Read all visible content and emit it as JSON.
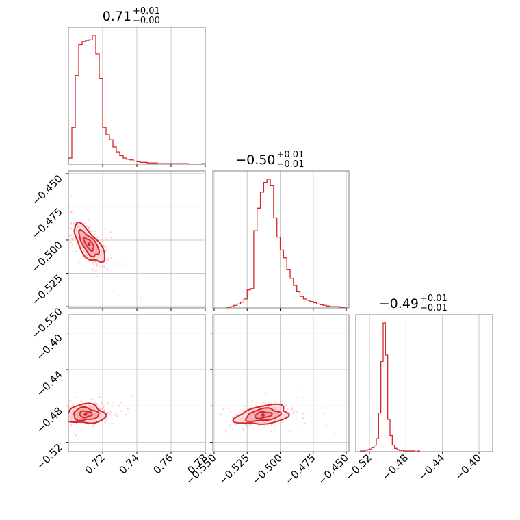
{
  "colors": {
    "hist": "#d62728",
    "contour": "#d62728",
    "fill_light": "#f7c9cc",
    "fill_mid": "#ec9aa0",
    "scatter": "#f4a3a8",
    "grid": "#c8c8c8",
    "frame": "#808080"
  },
  "chart_data": [
    {
      "type": "histogram",
      "panel": "0-0",
      "variable": 0,
      "title": {
        "value": "0.71",
        "plus": "+0.01",
        "minus": "−0.00"
      },
      "xlim": [
        0.7,
        0.78
      ],
      "bins": {
        "start": 0.7,
        "width": 0.002,
        "counts": [
          10,
          60,
          145,
          195,
          200,
          202,
          203,
          210,
          180,
          140,
          60,
          48,
          40,
          28,
          20,
          14,
          10,
          8,
          7,
          5,
          4,
          3,
          3,
          2,
          2,
          2,
          1,
          1,
          1,
          1,
          1,
          1,
          1,
          1,
          1,
          0,
          0,
          0,
          0,
          1
        ]
      }
    },
    {
      "type": "scatter-contour",
      "panel": "1-0",
      "xlim": [
        0.7,
        0.78
      ],
      "ylim": [
        -0.551,
        -0.448
      ],
      "xcenter": 0.712,
      "ycenter": -0.503,
      "contour_levels": 3
    },
    {
      "type": "histogram",
      "panel": "1-1",
      "variable": 1,
      "title": {
        "value": "−0.50",
        "plus": "+0.01",
        "minus": "−0.01"
      },
      "xlim": [
        -0.551,
        -0.448
      ],
      "bins": {
        "start": -0.54,
        "width": 0.0025,
        "counts": [
          1,
          2,
          4,
          6,
          9,
          14,
          28,
          30,
          120,
          155,
          180,
          195,
          200,
          190,
          140,
          110,
          90,
          78,
          60,
          46,
          35,
          25,
          18,
          14,
          12,
          10,
          8,
          6,
          5,
          4,
          3,
          2,
          2,
          2,
          1,
          1
        ]
      }
    },
    {
      "type": "scatter-contour",
      "panel": "2-0",
      "xlim": [
        0.7,
        0.78
      ],
      "ylim": [
        -0.53,
        -0.38
      ],
      "xcenter": 0.71,
      "ycenter": -0.489,
      "contour_levels": 3
    },
    {
      "type": "scatter-contour",
      "panel": "2-1",
      "xlim": [
        -0.551,
        -0.448
      ],
      "ylim": [
        -0.53,
        -0.38
      ],
      "xcenter": -0.513,
      "ycenter": -0.49,
      "contour_levels": 3
    },
    {
      "type": "histogram",
      "panel": "2-2",
      "variable": 2,
      "title": {
        "value": "−0.49",
        "plus": "+0.01",
        "minus": "−0.01"
      },
      "xlim": [
        -0.535,
        -0.385
      ],
      "bins": {
        "start": -0.53,
        "width": 0.0025,
        "counts": [
          1,
          1,
          2,
          3,
          4,
          6,
          10,
          20,
          60,
          140,
          200,
          150,
          50,
          25,
          10,
          5,
          3,
          2,
          2,
          1,
          1,
          1,
          1,
          1,
          0,
          1
        ]
      }
    }
  ],
  "axes": {
    "x0_ticks": [
      {
        "value": 0.72,
        "label": "0.72"
      },
      {
        "value": 0.74,
        "label": "0.74"
      },
      {
        "value": 0.76,
        "label": "0.76"
      },
      {
        "value": 0.78,
        "label": "0.78"
      }
    ],
    "x1_ticks": [
      {
        "value": -0.55,
        "label": "−0.550"
      },
      {
        "value": -0.525,
        "label": "−0.525"
      },
      {
        "value": -0.5,
        "label": "−0.500"
      },
      {
        "value": -0.475,
        "label": "−0.475"
      },
      {
        "value": -0.45,
        "label": "−0.450"
      }
    ],
    "x2_ticks": [
      {
        "value": -0.52,
        "label": "−0.52"
      },
      {
        "value": -0.48,
        "label": "−0.48"
      },
      {
        "value": -0.44,
        "label": "−0.44"
      },
      {
        "value": -0.4,
        "label": "−0.40"
      }
    ],
    "y1_ticks": [
      {
        "value": -0.45,
        "label": "−0.450"
      },
      {
        "value": -0.475,
        "label": "−0.475"
      },
      {
        "value": -0.5,
        "label": "−0.500"
      },
      {
        "value": -0.525,
        "label": "−0.525"
      },
      {
        "value": -0.55,
        "label": "−0.550"
      }
    ],
    "y2_ticks": [
      {
        "value": -0.4,
        "label": "−0.40"
      },
      {
        "value": -0.44,
        "label": "−0.44"
      },
      {
        "value": -0.48,
        "label": "−0.48"
      },
      {
        "value": -0.52,
        "label": "−0.52"
      }
    ]
  }
}
